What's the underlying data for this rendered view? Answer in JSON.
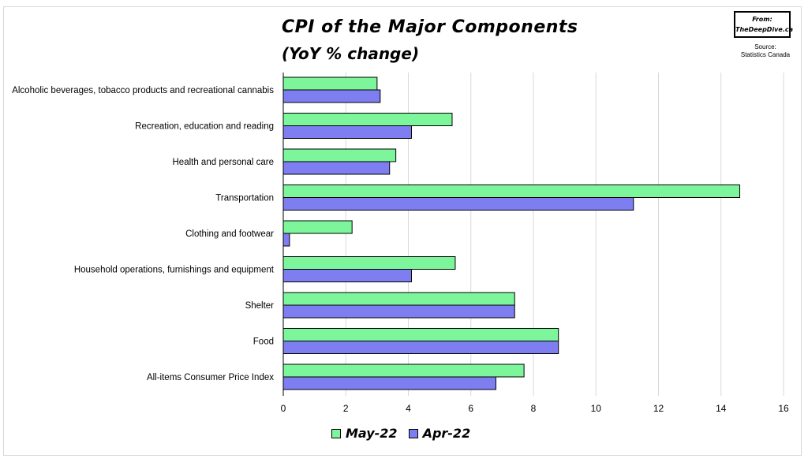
{
  "header": {
    "title": "CPI of the Major Components",
    "subtitle": "(YoY % change)",
    "from_label": "From:",
    "from_site": "TheDeepDive.ca",
    "source_label": "Source:",
    "source_name": "Statistics Canada"
  },
  "colors": {
    "may": "#7cf59b",
    "apr": "#7e7ef0",
    "grid": "#d9d9d9",
    "border": "#000000"
  },
  "chart_data": {
    "type": "bar",
    "orientation": "horizontal",
    "title": "CPI of the Major Components",
    "subtitle": "(YoY % change)",
    "categories": [
      "Alcoholic beverages, tobacco products and recreational cannabis",
      "Recreation, education and reading",
      "Health and personal care",
      "Transportation",
      "Clothing and footwear",
      "Household operations, furnishings and equipment",
      "Shelter",
      "Food",
      "All-items Consumer Price Index"
    ],
    "series": [
      {
        "name": "May-22",
        "values": [
          3.0,
          5.4,
          3.6,
          14.6,
          2.2,
          5.5,
          7.4,
          8.8,
          7.7
        ]
      },
      {
        "name": "Apr-22",
        "values": [
          3.1,
          4.1,
          3.4,
          11.2,
          0.2,
          4.1,
          7.4,
          8.8,
          6.8
        ]
      }
    ],
    "xlim": [
      0,
      16
    ],
    "xticks": [
      "0",
      "2",
      "4",
      "6",
      "8",
      "10",
      "12",
      "14",
      "16"
    ],
    "grid": true,
    "legend_position": "bottom"
  }
}
